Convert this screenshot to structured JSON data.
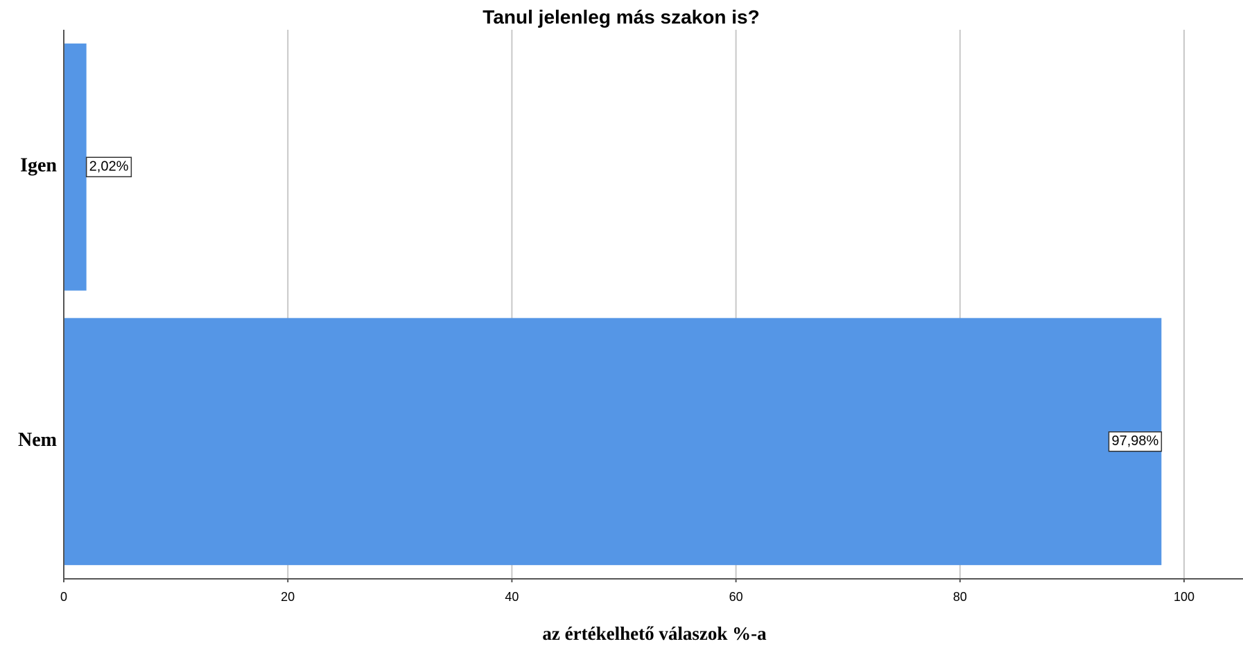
{
  "chart_data": {
    "type": "bar",
    "orientation": "horizontal",
    "title": "Tanul jelenleg más szakon is?",
    "xlabel": "az értékelhető válaszok %-a",
    "ylabel": "",
    "categories": [
      "Igen",
      "Nem"
    ],
    "values": [
      2.02,
      97.98
    ],
    "data_labels": [
      "2,02%",
      "97,98%"
    ],
    "xlim": [
      0,
      100
    ],
    "xticks": [
      0,
      20,
      40,
      60,
      80,
      100
    ],
    "xtick_labels": [
      "0",
      "20",
      "40",
      "60",
      "80",
      "100"
    ],
    "grid": true,
    "legend": false,
    "bar_color": "#5596e6"
  }
}
